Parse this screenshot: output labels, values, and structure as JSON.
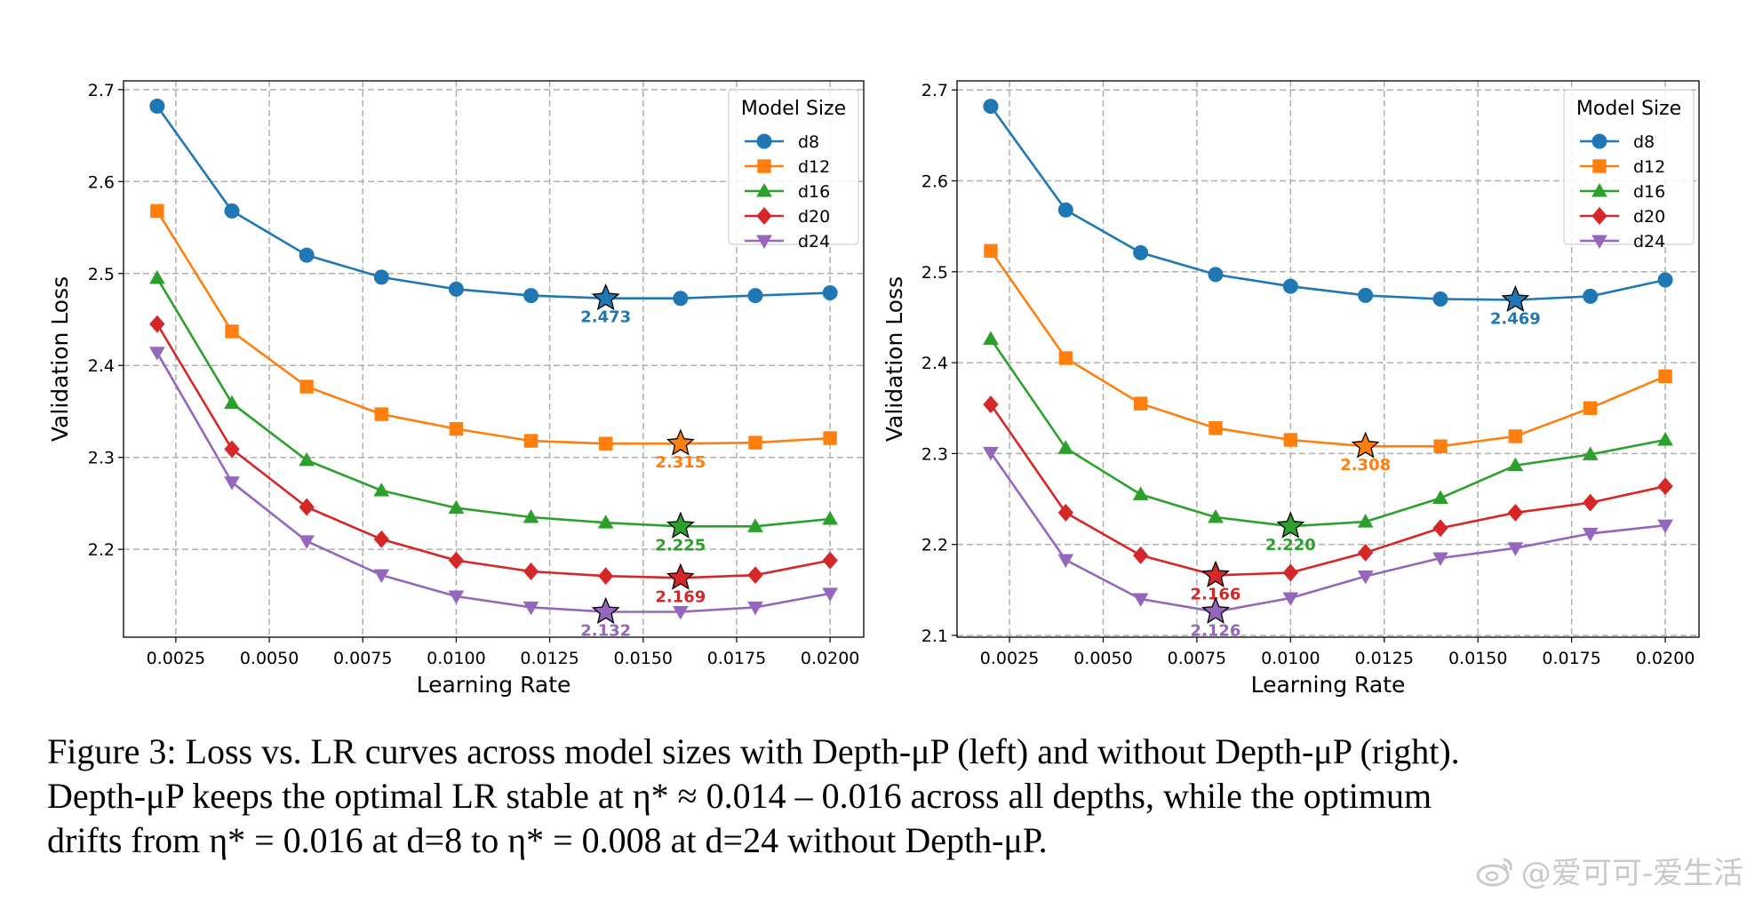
{
  "chart_data": [
    {
      "type": "line",
      "panel": "left",
      "xlabel": "Learning Rate",
      "ylabel": "Validation Loss",
      "xlim": [
        0.0011,
        0.0209
      ],
      "ylim": [
        2.1045,
        2.7095
      ],
      "xticks": [
        "0.0025",
        "0.0050",
        "0.0075",
        "0.0100",
        "0.0125",
        "0.0150",
        "0.0175",
        "0.0200"
      ],
      "yticks": [
        "2.2",
        "2.3",
        "2.4",
        "2.5",
        "2.6",
        "2.7"
      ],
      "grid": true,
      "legend_title": "Model Size",
      "legend_position": "top-right",
      "x": [
        0.002,
        0.004,
        0.006,
        0.008,
        0.01,
        0.012,
        0.014,
        0.016,
        0.018,
        0.02
      ],
      "series": [
        {
          "name": "d8",
          "color": "#1f77b4",
          "marker": "circle",
          "values": [
            2.682,
            2.568,
            2.52,
            2.496,
            2.483,
            2.476,
            2.473,
            2.473,
            2.476,
            2.479
          ],
          "best_x": 0.014,
          "best_label": "2.473"
        },
        {
          "name": "d12",
          "color": "#ff7f0e",
          "marker": "square",
          "values": [
            2.568,
            2.437,
            2.377,
            2.347,
            2.331,
            2.318,
            2.315,
            2.315,
            2.316,
            2.321
          ],
          "best_x": 0.016,
          "best_label": "2.315"
        },
        {
          "name": "d16",
          "color": "#2ca02c",
          "marker": "triangle-up",
          "values": [
            2.495,
            2.359,
            2.297,
            2.264,
            2.245,
            2.235,
            2.229,
            2.225,
            2.225,
            2.233
          ],
          "best_x": 0.016,
          "best_label": "2.225"
        },
        {
          "name": "d20",
          "color": "#d62728",
          "marker": "diamond",
          "values": [
            2.445,
            2.309,
            2.246,
            2.211,
            2.188,
            2.176,
            2.171,
            2.169,
            2.172,
            2.188
          ],
          "best_x": 0.016,
          "best_label": "2.169"
        },
        {
          "name": "d24",
          "color": "#9467bd",
          "marker": "triangle-down",
          "values": [
            2.414,
            2.273,
            2.209,
            2.172,
            2.149,
            2.137,
            2.132,
            2.132,
            2.137,
            2.152
          ],
          "best_x": 0.014,
          "best_label": "2.132"
        }
      ]
    },
    {
      "type": "line",
      "panel": "right",
      "xlabel": "Learning Rate",
      "ylabel": "Validation Loss",
      "xlim": [
        0.0011,
        0.0209
      ],
      "ylim": [
        2.098,
        2.71
      ],
      "xticks": [
        "0.0025",
        "0.0050",
        "0.0075",
        "0.0100",
        "0.0125",
        "0.0150",
        "0.0175",
        "0.0200"
      ],
      "yticks": [
        "2.1",
        "2.2",
        "2.3",
        "2.4",
        "2.5",
        "2.6",
        "2.7"
      ],
      "grid": true,
      "legend_title": "Model Size",
      "legend_position": "top-right",
      "x": [
        0.002,
        0.004,
        0.006,
        0.008,
        0.01,
        0.012,
        0.014,
        0.016,
        0.018,
        0.02
      ],
      "series": [
        {
          "name": "d8",
          "color": "#1f77b4",
          "marker": "circle",
          "values": [
            2.682,
            2.568,
            2.521,
            2.497,
            2.484,
            2.474,
            2.47,
            2.469,
            2.473,
            2.491
          ],
          "best_x": 0.016,
          "best_label": "2.469"
        },
        {
          "name": "d12",
          "color": "#ff7f0e",
          "marker": "square",
          "values": [
            2.523,
            2.405,
            2.355,
            2.328,
            2.315,
            2.308,
            2.308,
            2.319,
            2.35,
            2.385
          ],
          "best_x": 0.012,
          "best_label": "2.308"
        },
        {
          "name": "d16",
          "color": "#2ca02c",
          "marker": "triangle-up",
          "values": [
            2.426,
            2.306,
            2.255,
            2.23,
            2.22,
            2.225,
            2.251,
            2.287,
            2.299,
            2.315
          ],
          "best_x": 0.01,
          "best_label": "2.220"
        },
        {
          "name": "d20",
          "color": "#d62728",
          "marker": "diamond",
          "values": [
            2.354,
            2.235,
            2.188,
            2.166,
            2.169,
            2.191,
            2.218,
            2.235,
            2.246,
            2.264
          ],
          "best_x": 0.008,
          "best_label": "2.166"
        },
        {
          "name": "d24",
          "color": "#9467bd",
          "marker": "triangle-down",
          "values": [
            2.301,
            2.183,
            2.14,
            2.126,
            2.141,
            2.165,
            2.185,
            2.196,
            2.212,
            2.221
          ],
          "best_x": 0.008,
          "best_label": "2.126"
        }
      ]
    }
  ],
  "caption": {
    "line1": "Figure 3: Loss vs. LR curves across model sizes with Depth-μP (left) and without Depth-μP (right).",
    "line2": "Depth-μP keeps the optimal LR stable at η* ≈ 0.014 – 0.016 across all depths, while the optimum",
    "line3": "drifts from η* = 0.016 at d=8 to η* = 0.008 at d=24 without Depth-μP."
  },
  "watermark": {
    "text": "@爱可可-爱生活",
    "icon": "weibo-logo-icon"
  }
}
